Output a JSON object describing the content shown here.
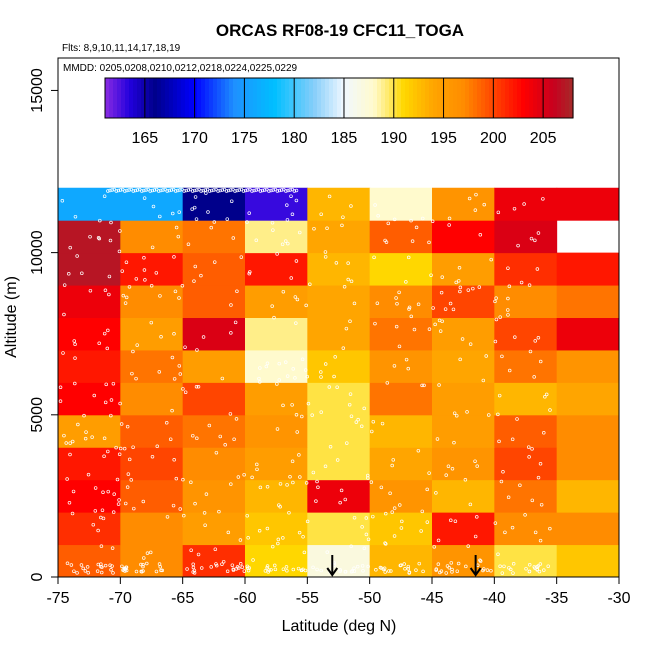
{
  "chart_data": {
    "type": "heatmap",
    "title": "ORCAS RF08-19 CFC11_TOGA",
    "flights_label": "Flts: 8,9,10,11,14,17,18,19",
    "dates_label": "MMDD: 0205,0208,0210,0212,0218,0224,0225,0229",
    "xlabel": "Latitude (deg N)",
    "ylabel": "Altitude (m)",
    "xlim": [
      -75,
      -30
    ],
    "ylim": [
      0,
      16000
    ],
    "x_ticks": [
      -75,
      -70,
      -65,
      -60,
      -55,
      -50,
      -45,
      -40,
      -35,
      -30
    ],
    "y_ticks": [
      0,
      5000,
      10000,
      15000
    ],
    "colorbar": {
      "min": 161,
      "max": 208,
      "ticks": [
        165,
        170,
        175,
        180,
        185,
        190,
        195,
        200,
        205
      ],
      "stops": [
        {
          "v": 161,
          "c": "#8a2be2"
        },
        {
          "v": 163.5,
          "c": "#2200dd"
        },
        {
          "v": 166,
          "c": "#00008b"
        },
        {
          "v": 170,
          "c": "#0000ff"
        },
        {
          "v": 174,
          "c": "#1e90ff"
        },
        {
          "v": 178,
          "c": "#00bfff"
        },
        {
          "v": 182,
          "c": "#87cefa"
        },
        {
          "v": 185,
          "c": "#f0f8ff"
        },
        {
          "v": 188,
          "c": "#fffacd"
        },
        {
          "v": 191,
          "c": "#ffd700"
        },
        {
          "v": 194,
          "c": "#ffa500"
        },
        {
          "v": 197,
          "c": "#ff8c00"
        },
        {
          "v": 200,
          "c": "#ff4500"
        },
        {
          "v": 203,
          "c": "#ff0000"
        },
        {
          "v": 206,
          "c": "#c8001e"
        },
        {
          "v": 208,
          "c": "#a52a2a"
        }
      ]
    },
    "grid": {
      "lat_bins": [
        -75,
        -70,
        -65,
        -60,
        -55,
        -50,
        -45,
        -40,
        -35,
        -30
      ],
      "alt_bins": [
        0,
        1000,
        2000,
        3000,
        4000,
        5000,
        6000,
        7000,
        8000,
        9000,
        10000,
        11000,
        12000
      ],
      "values": [
        [
          199,
          197,
          201,
          191,
          187,
          193,
          196,
          190,
          192
        ],
        [
          201,
          197,
          195,
          192,
          190,
          192,
          202,
          197,
          197
        ],
        [
          203,
          199,
          196,
          193,
          204,
          196,
          193,
          198,
          193
        ],
        [
          202,
          200,
          197,
          195,
          190,
          194,
          196,
          200,
          197
        ],
        [
          195,
          199,
          198,
          196,
          190,
          193,
          195,
          199,
          197
        ],
        [
          203,
          197,
          200,
          195,
          190,
          198,
          195,
          193,
          194
        ],
        [
          202,
          198,
          195,
          188,
          192,
          196,
          194,
          198,
          196
        ],
        [
          203,
          195,
          205,
          189,
          194,
          198,
          195,
          200,
          204
        ],
        [
          204,
          197,
          199,
          195,
          194,
          197,
          200,
          197,
          198
        ],
        [
          207,
          202,
          199,
          202,
          193,
          191,
          195,
          201,
          202
        ],
        [
          207,
          197,
          198,
          189,
          194,
          199,
          203,
          205,
          null
        ],
        [
          176,
          176,
          166,
          163,
          193,
          188,
          196,
          204,
          204
        ]
      ]
    },
    "markers": [
      {
        "lat": -53,
        "label": "arrow"
      },
      {
        "lat": -41.5,
        "label": "arrow"
      }
    ]
  }
}
